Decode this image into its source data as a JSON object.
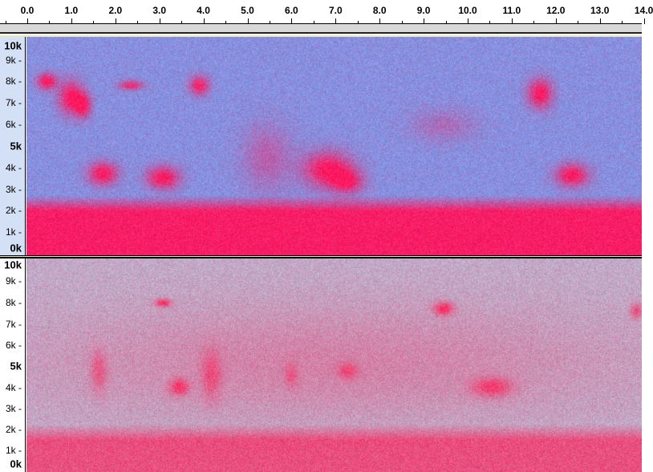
{
  "ruler": {
    "labels": [
      "0.0",
      "1.0",
      "2.0",
      "3.0",
      "4.0",
      "5.0",
      "6.0",
      "7.0",
      "8.0",
      "9.0",
      "10.0",
      "11.0",
      "12.0",
      "13.0",
      "14.0"
    ]
  },
  "tracks": [
    {
      "freq_labels": [
        {
          "t": "10k",
          "bold": true
        },
        {
          "t": "9k"
        },
        {
          "t": "8k"
        },
        {
          "t": "7k"
        },
        {
          "t": "6k"
        },
        {
          "t": "5k",
          "bold": true
        },
        {
          "t": "4k"
        },
        {
          "t": "3k"
        },
        {
          "t": "2k"
        },
        {
          "t": "1k"
        },
        {
          "t": "0k",
          "bold": true
        }
      ],
      "background": "#7ea6f0",
      "hot": "#ff2050"
    },
    {
      "freq_labels": [
        {
          "t": "10k",
          "bold": true
        },
        {
          "t": "9k"
        },
        {
          "t": "8k"
        },
        {
          "t": "7k"
        },
        {
          "t": "6k"
        },
        {
          "t": "5k",
          "bold": true
        },
        {
          "t": "4k"
        },
        {
          "t": "3k"
        },
        {
          "t": "2k"
        },
        {
          "t": "1k"
        },
        {
          "t": "0k",
          "bold": true
        }
      ],
      "background": "#b8c0d8",
      "hot": "#e040c0"
    }
  ]
}
